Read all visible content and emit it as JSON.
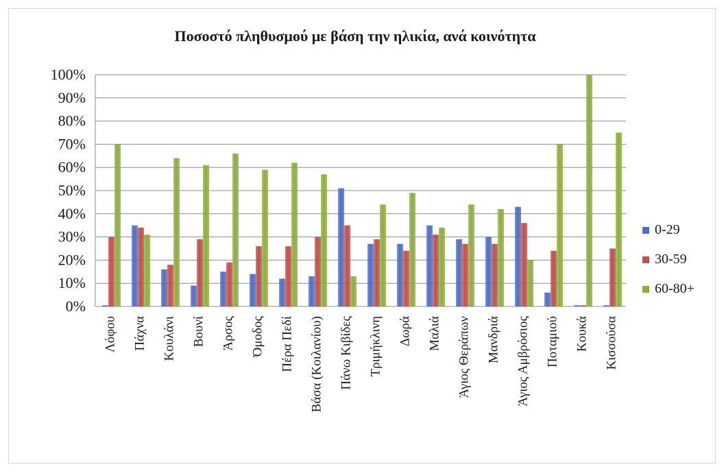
{
  "chart_data": {
    "type": "bar",
    "title": "Ποσοστό πληθυσμού με βάση την ηλικία, ανά κοινότητα",
    "xlabel": "",
    "ylabel": "",
    "ylim": [
      0,
      100
    ],
    "yticks": [
      "0%",
      "10%",
      "20%",
      "30%",
      "40%",
      "50%",
      "60%",
      "70%",
      "80%",
      "90%",
      "100%"
    ],
    "grid": true,
    "legend_position": "right",
    "categories": [
      "Λόφου",
      "Πάχνα",
      "Κουλάνι",
      "Βουνί",
      "Άρσος",
      "Όμοδος",
      "Πέρα Πεδί",
      "Βάσα (Κοιλανίου)",
      "Πάνω Κιβίδες",
      "Τριμήκλινη",
      "Δωρά",
      "Μαλιά",
      "Άγιος Θεράπων",
      "Μανδριά",
      "Άγιος Αμβρόσιος",
      "Ποταμιού",
      "Κουκά",
      "Κισσούσα"
    ],
    "series": [
      {
        "name": "0-29",
        "color": "#4f6fc4",
        "values": [
          0.5,
          35,
          16,
          9,
          15,
          14,
          12,
          13,
          51,
          27,
          27,
          35,
          29,
          30,
          43,
          6,
          0.5,
          0.5
        ]
      },
      {
        "name": "30-59",
        "color": "#c0504d",
        "values": [
          30,
          34,
          18,
          29,
          19,
          26,
          26,
          30,
          35,
          29,
          24,
          31,
          27,
          27,
          36,
          24,
          0.5,
          25
        ]
      },
      {
        "name": "60-80+",
        "color": "#8fad3f",
        "values": [
          70,
          31,
          64,
          61,
          66,
          59,
          62,
          57,
          13,
          44,
          49,
          34,
          44,
          42,
          20,
          70,
          100,
          75
        ]
      }
    ]
  }
}
